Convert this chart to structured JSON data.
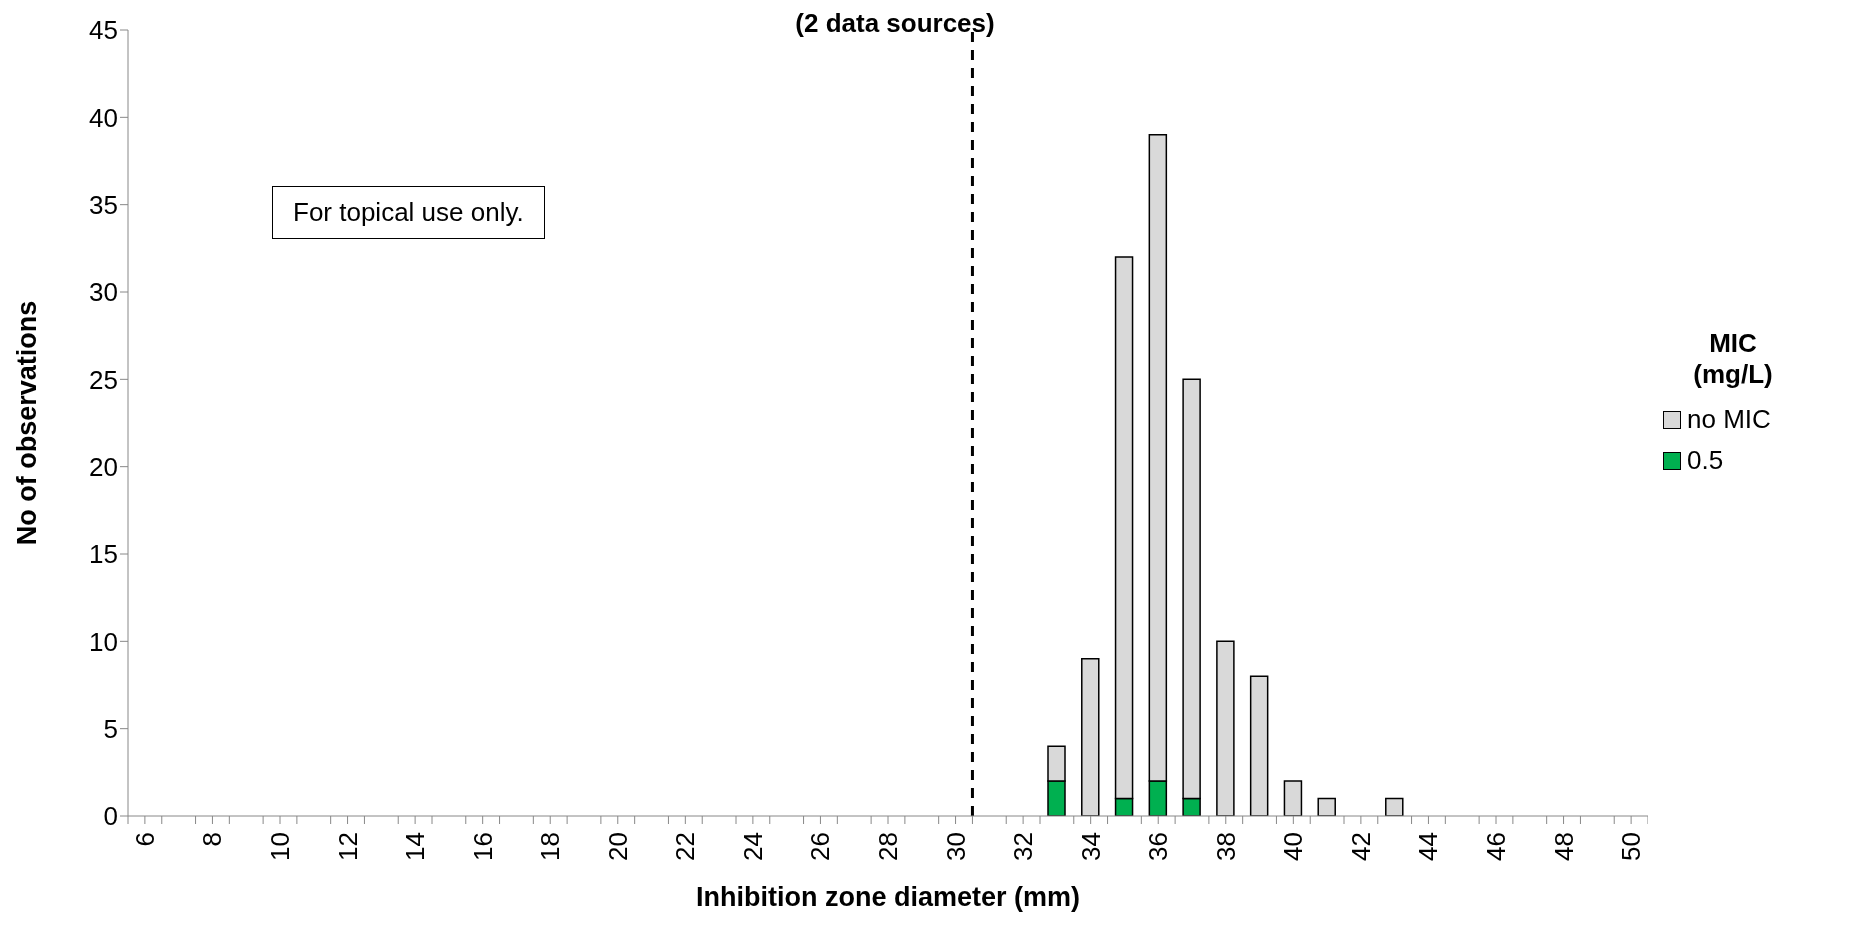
{
  "chart_data": {
    "type": "bar",
    "title": "(2 data sources)",
    "xlabel": "Inhibition zone diameter (mm)",
    "ylabel": "No of observations",
    "legend_title": "MIC (mg/L)",
    "legend": "right",
    "stacked": true,
    "grid": false,
    "x": [
      33,
      34,
      35,
      36,
      37,
      38,
      39,
      40,
      41,
      43
    ],
    "series": [
      {
        "name": "0.5",
        "color": "#00b050",
        "values": [
          2,
          null,
          1,
          2,
          1,
          null,
          null,
          null,
          null,
          null
        ]
      },
      {
        "name": "no MIC",
        "color": "#d9d9d9",
        "values": [
          2,
          9,
          31,
          37,
          24,
          10,
          8,
          2,
          1,
          1
        ]
      }
    ],
    "xlim": [
      5.5,
      50.5
    ],
    "xticks": [
      {
        "value": 5.5,
        "label": null
      },
      6,
      {
        "value": 6.5,
        "label": null
      },
      {
        "value": 7.5,
        "label": null
      },
      8,
      {
        "value": 8.5,
        "label": null
      },
      {
        "value": 9.5,
        "label": null
      },
      10,
      {
        "value": 10.5,
        "label": null
      },
      {
        "value": 11.5,
        "label": null
      },
      12,
      {
        "value": 12.5,
        "label": null
      },
      {
        "value": 13.5,
        "label": null
      },
      14,
      {
        "value": 14.5,
        "label": null
      },
      {
        "value": 15.5,
        "label": null
      },
      16,
      {
        "value": 16.5,
        "label": null
      },
      {
        "value": 17.5,
        "label": null
      },
      18,
      {
        "value": 18.5,
        "label": null
      },
      {
        "value": 19.5,
        "label": null
      },
      20,
      {
        "value": 20.5,
        "label": null
      },
      {
        "value": 21.5,
        "label": null
      },
      22,
      {
        "value": 22.5,
        "label": null
      },
      {
        "value": 23.5,
        "label": null
      },
      24,
      {
        "value": 24.5,
        "label": null
      },
      {
        "value": 25.5,
        "label": null
      },
      26,
      {
        "value": 26.5,
        "label": null
      },
      {
        "value": 27.5,
        "label": null
      },
      28,
      {
        "value": 28.5,
        "label": null
      },
      {
        "value": 29.5,
        "label": null
      },
      30,
      {
        "value": 30.5,
        "label": null
      },
      {
        "value": 31.5,
        "label": null
      },
      32,
      {
        "value": 32.5,
        "label": null
      },
      {
        "value": 33.5,
        "label": null
      },
      34,
      {
        "value": 34.5,
        "label": null
      },
      {
        "value": 35.5,
        "label": null
      },
      36,
      {
        "value": 36.5,
        "label": null
      },
      {
        "value": 37.5,
        "label": null
      },
      38,
      {
        "value": 38.5,
        "label": null
      },
      {
        "value": 39.5,
        "label": null
      },
      40,
      {
        "value": 40.5,
        "label": null
      },
      {
        "value": 41.5,
        "label": null
      },
      42,
      {
        "value": 42.5,
        "label": null
      },
      {
        "value": 43.5,
        "label": null
      },
      44,
      {
        "value": 44.5,
        "label": null
      },
      {
        "value": 45.5,
        "label": null
      },
      46,
      {
        "value": 46.5,
        "label": null
      },
      {
        "value": 47.5,
        "label": null
      },
      48,
      {
        "value": 48.5,
        "label": null
      },
      {
        "value": 49.5,
        "label": null
      },
      50,
      {
        "value": 50.5,
        "label": null
      }
    ],
    "ylim": [
      0,
      45
    ],
    "yticks": [
      0,
      5,
      10,
      15,
      20,
      25,
      30,
      35,
      40,
      45
    ],
    "ref_lines": [
      {
        "axis": "x",
        "value": 30.5,
        "color": "#000000",
        "line_style": "dashed"
      }
    ],
    "annotations": [
      "For topical use only."
    ]
  }
}
